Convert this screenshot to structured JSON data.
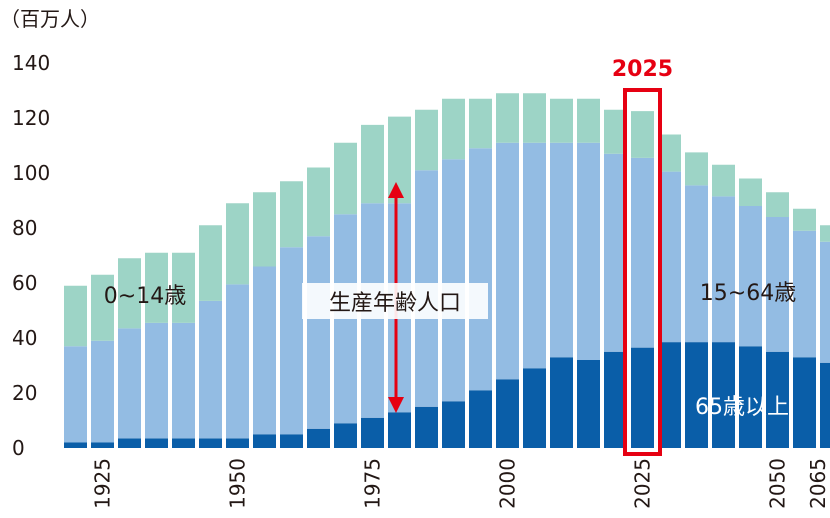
{
  "chart_data": {
    "type": "bar",
    "stacked": true,
    "unit_label": "（百万人）",
    "ylim": [
      0,
      140
    ],
    "yticks": [
      0,
      20,
      40,
      60,
      80,
      100,
      120,
      140
    ],
    "xtick_labels": [
      "1925",
      "1950",
      "1975",
      "2000",
      "2025",
      "2050",
      "2065"
    ],
    "highlight": {
      "label": "2025",
      "year": 2025,
      "color": "#e60012"
    },
    "colors": {
      "aged": "#0a5ea8",
      "working": "#93bce3",
      "young": "#9dd4c6"
    },
    "categories": [
      1920,
      1925,
      1930,
      1935,
      1940,
      1945,
      1950,
      1955,
      1960,
      1965,
      1970,
      1975,
      1980,
      1985,
      1990,
      1995,
      2000,
      2005,
      2010,
      2015,
      2020,
      2025,
      2030,
      2035,
      2040,
      2045,
      2050,
      2055,
      2060,
      2065
    ],
    "series": [
      {
        "name": "65歳以上",
        "values": [
          2,
          2,
          3.5,
          3.5,
          3.5,
          3.5,
          3.5,
          5,
          5,
          7,
          9,
          11,
          13,
          15,
          17,
          21,
          25,
          29,
          33,
          32,
          35,
          36.5,
          38.5,
          38.5,
          38.5,
          37,
          35,
          33,
          31,
          31
        ]
      },
      {
        "name": "15~64歳",
        "values": [
          35,
          37,
          40,
          42,
          42,
          50,
          56,
          61,
          68,
          70,
          76,
          78,
          76,
          86,
          88,
          88,
          86,
          82,
          78,
          79,
          72,
          69,
          62,
          57,
          53,
          51,
          49,
          46,
          44,
          44
        ]
      },
      {
        "name": "0~14歳",
        "values": [
          22,
          24,
          25.5,
          25.5,
          25.5,
          27.5,
          29.5,
          27,
          24,
          25,
          26,
          28.5,
          31.5,
          22,
          22,
          18,
          18,
          18,
          16,
          16,
          16,
          17,
          13.5,
          12,
          11.5,
          10,
          9,
          8,
          6,
          6
        ]
      }
    ],
    "annotations": {
      "working_center": "生産年齢人口",
      "young_label": "0~14歳",
      "working_label": "15~64歳",
      "aged_label": "65歳以上"
    }
  }
}
